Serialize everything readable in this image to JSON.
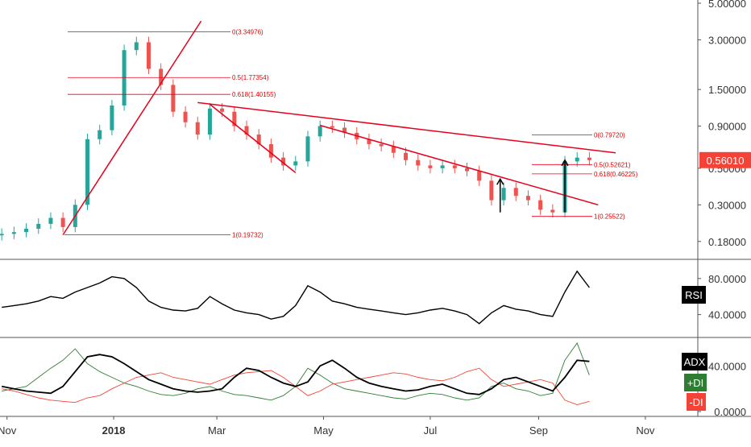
{
  "chart_data": {
    "type": "line",
    "title": "",
    "colors": {
      "candle_up": "#26a69a",
      "candle_down": "#ef5350",
      "trendline": "#e8001c",
      "fib": "#e8001c",
      "price_badge": "#f44336",
      "rsi_line": "#000000",
      "adx_line": "#000000",
      "plus_di": "#2e7d32",
      "minus_di": "#f44336"
    },
    "x_axis": {
      "ticks": [
        "Nov",
        "2018",
        "Mar",
        "May",
        "Jul",
        "Sep",
        "Nov"
      ]
    },
    "price_panel": {
      "scale": "log",
      "ylim": [
        0.15,
        5.0
      ],
      "ticks": [
        "5.00000",
        "3.00000",
        "1.50000",
        "0.90000",
        "0.50000",
        "0.30000",
        "0.18000"
      ],
      "last_price": "0.56010",
      "candles": [
        {
          "date": "2017-10-29",
          "close": 0.2
        },
        {
          "date": "2017-11-05",
          "close": 0.205
        },
        {
          "date": "2017-11-12",
          "close": 0.215
        },
        {
          "date": "2017-11-19",
          "close": 0.23
        },
        {
          "date": "2017-11-26",
          "close": 0.25
        },
        {
          "date": "2017-12-03",
          "close": 0.22
        },
        {
          "date": "2017-12-10",
          "close": 0.3
        },
        {
          "date": "2017-12-17",
          "close": 0.75
        },
        {
          "date": "2017-12-24",
          "close": 0.85
        },
        {
          "date": "2017-12-31",
          "close": 1.2
        },
        {
          "date": "2018-01-07",
          "close": 2.6
        },
        {
          "date": "2018-01-14",
          "close": 2.9
        },
        {
          "date": "2018-01-21",
          "close": 2.0
        },
        {
          "date": "2018-01-28",
          "close": 1.6
        },
        {
          "date": "2018-02-04",
          "close": 1.1
        },
        {
          "date": "2018-02-11",
          "close": 0.95
        },
        {
          "date": "2018-02-18",
          "close": 0.8
        },
        {
          "date": "2018-02-25",
          "close": 1.15
        },
        {
          "date": "2018-03-04",
          "close": 1.1
        },
        {
          "date": "2018-03-11",
          "close": 0.9
        },
        {
          "date": "2018-03-18",
          "close": 0.8
        },
        {
          "date": "2018-03-25",
          "close": 0.7
        },
        {
          "date": "2018-04-01",
          "close": 0.58
        },
        {
          "date": "2018-04-08",
          "close": 0.52
        },
        {
          "date": "2018-04-15",
          "close": 0.55
        },
        {
          "date": "2018-04-22",
          "close": 0.78
        },
        {
          "date": "2018-04-29",
          "close": 0.9
        },
        {
          "date": "2018-05-06",
          "close": 0.88
        },
        {
          "date": "2018-05-13",
          "close": 0.82
        },
        {
          "date": "2018-05-20",
          "close": 0.75
        },
        {
          "date": "2018-05-27",
          "close": 0.7
        },
        {
          "date": "2018-06-03",
          "close": 0.68
        },
        {
          "date": "2018-06-10",
          "close": 0.62
        },
        {
          "date": "2018-06-17",
          "close": 0.56
        },
        {
          "date": "2018-06-24",
          "close": 0.52
        },
        {
          "date": "2018-07-01",
          "close": 0.5
        },
        {
          "date": "2018-07-08",
          "close": 0.52
        },
        {
          "date": "2018-07-15",
          "close": 0.5
        },
        {
          "date": "2018-07-22",
          "close": 0.48
        },
        {
          "date": "2018-07-29",
          "close": 0.42
        },
        {
          "date": "2018-08-05",
          "close": 0.32
        },
        {
          "date": "2018-08-12",
          "close": 0.38
        },
        {
          "date": "2018-08-19",
          "close": 0.34
        },
        {
          "date": "2018-08-26",
          "close": 0.32
        },
        {
          "date": "2018-09-02",
          "close": 0.28
        },
        {
          "date": "2018-09-09",
          "close": 0.27
        },
        {
          "date": "2018-09-16",
          "close": 0.55
        },
        {
          "date": "2018-09-23",
          "close": 0.58
        },
        {
          "date": "2018-09-30",
          "close": 0.56
        }
      ],
      "fibonacci": [
        {
          "label": "0(3.34976)",
          "price": 3.34976
        },
        {
          "label": "0.5(1.77354)",
          "price": 1.77354
        },
        {
          "label": "0.618(1.40155)",
          "price": 1.40155
        },
        {
          "label": "1(0.19732)",
          "price": 0.19732
        },
        {
          "label": "0(0.79720)",
          "price": 0.7972
        },
        {
          "label": "0.5(0.52621)",
          "price": 0.52621
        },
        {
          "label": "0.618(0.46225)",
          "price": 0.46225
        },
        {
          "label": "1(0.25522)",
          "price": 0.25522
        }
      ]
    },
    "rsi_panel": {
      "ylim": [
        20,
        95
      ],
      "ticks": [
        "80.0000",
        "40.0000"
      ],
      "label": "RSI",
      "values": [
        48,
        50,
        52,
        55,
        60,
        58,
        65,
        70,
        75,
        82,
        80,
        70,
        55,
        48,
        45,
        44,
        47,
        60,
        52,
        45,
        42,
        40,
        35,
        38,
        50,
        72,
        65,
        55,
        52,
        48,
        46,
        44,
        42,
        40,
        42,
        45,
        47,
        44,
        40,
        30,
        42,
        50,
        46,
        44,
        40,
        38,
        65,
        88,
        70
      ]
    },
    "adx_panel": {
      "ylim": [
        0,
        60
      ],
      "ticks": [
        "40.0000",
        "0.0000"
      ],
      "labels": {
        "adx": "ADX",
        "plus_di": "+DI",
        "minus_di": "-DI"
      },
      "adx": [
        22,
        20,
        18,
        17,
        16,
        22,
        35,
        48,
        50,
        48,
        42,
        35,
        28,
        24,
        20,
        18,
        17,
        18,
        20,
        30,
        38,
        36,
        30,
        25,
        22,
        26,
        40,
        45,
        38,
        30,
        25,
        22,
        20,
        18,
        19,
        22,
        24,
        20,
        16,
        15,
        20,
        28,
        30,
        26,
        22,
        18,
        30,
        45,
        44
      ],
      "plus_di": [
        18,
        20,
        22,
        30,
        38,
        45,
        55,
        42,
        35,
        30,
        25,
        22,
        18,
        15,
        14,
        16,
        20,
        22,
        18,
        15,
        14,
        12,
        10,
        14,
        22,
        38,
        32,
        25,
        20,
        18,
        16,
        14,
        12,
        11,
        14,
        16,
        15,
        12,
        10,
        12,
        22,
        25,
        20,
        18,
        14,
        16,
        45,
        60,
        32
      ],
      "minus_di": [
        20,
        18,
        15,
        12,
        10,
        9,
        8,
        12,
        14,
        20,
        25,
        30,
        32,
        34,
        30,
        28,
        26,
        24,
        28,
        32,
        34,
        35,
        36,
        30,
        22,
        14,
        18,
        24,
        26,
        28,
        30,
        32,
        34,
        33,
        30,
        28,
        27,
        30,
        35,
        38,
        28,
        22,
        24,
        26,
        28,
        25,
        10,
        6,
        9
      ]
    }
  }
}
